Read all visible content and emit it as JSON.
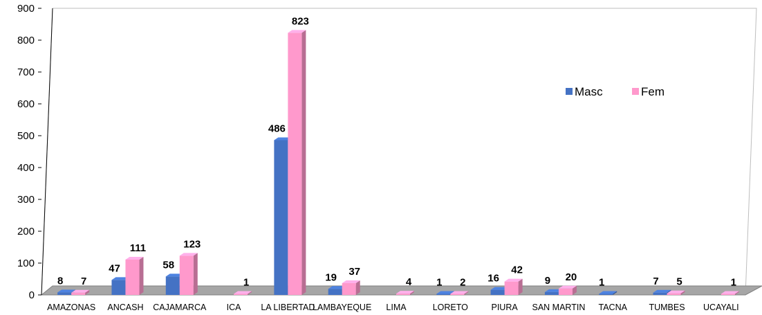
{
  "chart_data": {
    "type": "bar",
    "categories": [
      "AMAZONAS",
      "ANCASH",
      "CAJAMARCA",
      "ICA",
      "LA LIBERTAD",
      "LAMBAYEQUE",
      "LIMA",
      "LORETO",
      "PIURA",
      "SAN MARTIN",
      "TACNA",
      "TUMBES",
      "UCAYALI"
    ],
    "series": [
      {
        "name": "Masc",
        "color": "#4472C4",
        "values": [
          8,
          47,
          58,
          null,
          486,
          19,
          null,
          1,
          16,
          9,
          1,
          7,
          null
        ]
      },
      {
        "name": "Fem",
        "color": "#FF99CC",
        "values": [
          7,
          111,
          123,
          1,
          823,
          37,
          4,
          2,
          42,
          20,
          null,
          5,
          1
        ]
      }
    ],
    "yticks": [
      0,
      100,
      200,
      300,
      400,
      500,
      600,
      700,
      800,
      900
    ],
    "ylim": [
      0,
      900
    ],
    "grid": false,
    "legend_position": "right",
    "style": "3d-column"
  }
}
